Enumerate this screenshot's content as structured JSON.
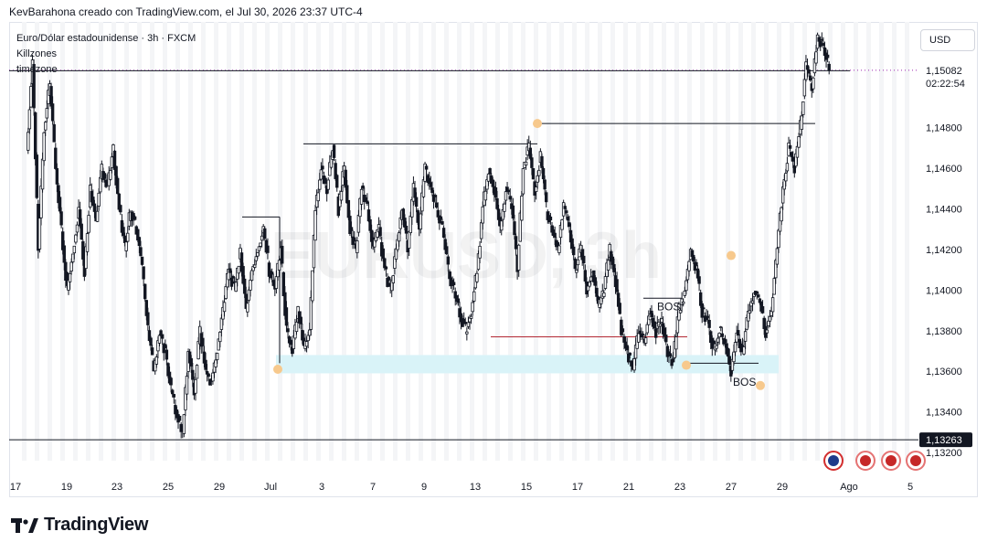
{
  "header": {
    "text": "KevBarahona creado con TradingView.com, el Jul 30, 2026 23:37 UTC-4"
  },
  "legend": {
    "line1": "Euro/Dólar estadounidense · 3h · FXCM",
    "line2": "Killzones",
    "line3": "timezone"
  },
  "watermark": "EURUSD, 3h",
  "currency_button": "USD",
  "footer": {
    "brand": "TradingView"
  },
  "colors": {
    "up": "#ffffff",
    "down": "#131722",
    "zone": "#d9f3f8",
    "pivot": "#f7c98d",
    "current_price": "#9c27b0",
    "red_line": "#b22833"
  },
  "chart_data": {
    "type": "candlestick",
    "symbol": "EURUSD",
    "timeframe": "3h",
    "x_ticks": [
      "17",
      "19",
      "23",
      "25",
      "29",
      "Jul",
      "3",
      "7",
      "9",
      "13",
      "15",
      "17",
      "21",
      "23",
      "27",
      "29",
      "Ago",
      "5"
    ],
    "y_ticks": [
      "1,15200",
      "1,14800",
      "1,14600",
      "1,14400",
      "1,14200",
      "1,14000",
      "1,13800",
      "1,13600",
      "1,13400",
      "1,13200"
    ],
    "ylim": [
      1.1316,
      1.1532
    ],
    "current_price": {
      "label": "1,15082",
      "value": 1.15082,
      "countdown": "02:22:54"
    },
    "low_level": {
      "label": "1,13263",
      "value": 1.13263
    },
    "annotations": [
      {
        "text": "BOS"
      },
      {
        "text": "BOS"
      }
    ],
    "path": [
      1.147,
      1.151,
      1.142,
      1.148,
      1.15,
      1.146,
      1.143,
      1.14,
      1.142,
      1.144,
      1.141,
      1.145,
      1.1435,
      1.146,
      1.145,
      1.147,
      1.144,
      1.142,
      1.144,
      1.143,
      1.141,
      1.138,
      1.136,
      1.138,
      1.137,
      1.135,
      1.134,
      1.133,
      1.137,
      1.135,
      1.138,
      1.136,
      1.1355,
      1.137,
      1.139,
      1.141,
      1.14,
      1.142,
      1.139,
      1.141,
      1.142,
      1.143,
      1.141,
      1.14,
      1.142,
      1.138,
      1.137,
      1.139,
      1.137,
      1.138,
      1.144,
      1.146,
      1.145,
      1.147,
      1.144,
      1.146,
      1.143,
      1.142,
      1.145,
      1.144,
      1.142,
      1.143,
      1.141,
      1.14,
      1.142,
      1.144,
      1.142,
      1.145,
      1.143,
      1.146,
      1.145,
      1.144,
      1.143,
      1.141,
      1.14,
      1.139,
      1.138,
      1.139,
      1.141,
      1.144,
      1.146,
      1.145,
      1.143,
      1.145,
      1.144,
      1.141,
      1.146,
      1.147,
      1.145,
      1.1465,
      1.144,
      1.143,
      1.142,
      1.144,
      1.143,
      1.141,
      1.142,
      1.14,
      1.141,
      1.139,
      1.14,
      1.142,
      1.1405,
      1.138,
      1.137,
      1.136,
      1.138,
      1.1375,
      1.139,
      1.138,
      1.1385,
      1.137,
      1.1365,
      1.139,
      1.14,
      1.142,
      1.141,
      1.139,
      1.1385,
      1.137,
      1.138,
      1.1375,
      1.136,
      1.138,
      1.137,
      1.139,
      1.14,
      1.1395,
      1.138,
      1.139,
      1.142,
      1.145,
      1.147,
      1.146,
      1.148,
      1.151,
      1.15,
      1.1525,
      1.152,
      1.1508
    ]
  }
}
